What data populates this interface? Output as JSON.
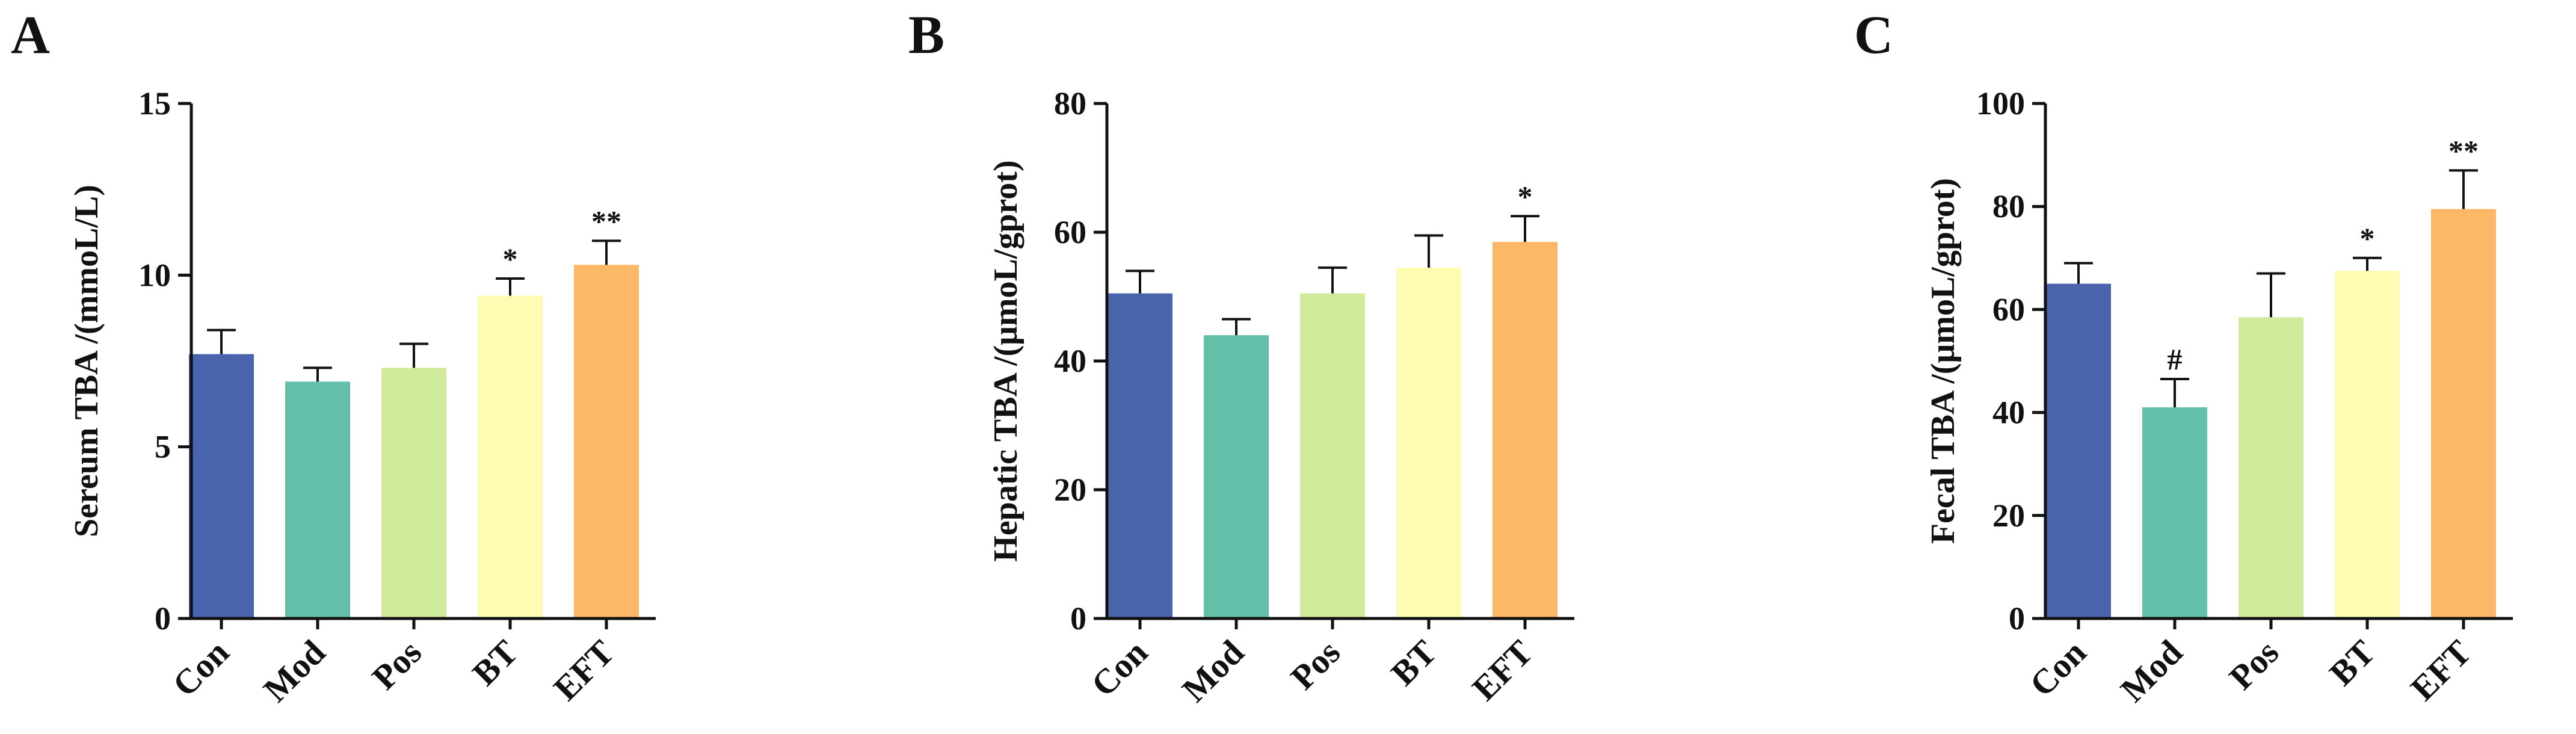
{
  "colors": {
    "Con": "#4a63ad",
    "Mod": "#63bfa8",
    "Pos": "#d1eb9c",
    "BT": "#fefbb3",
    "EFT": "#fdb867",
    "axis": "#111111"
  },
  "chart_data": [
    {
      "type": "bar",
      "panel": "A",
      "title": "",
      "xlabel": "",
      "ylabel": "Sereum TBA /(mmoL/L)",
      "ylim": [
        0,
        15
      ],
      "yticks": [
        0,
        5,
        10,
        15
      ],
      "categories": [
        "Con",
        "Mod",
        "Pos",
        "BT",
        "EFT"
      ],
      "values": [
        7.7,
        6.9,
        7.3,
        9.4,
        10.3
      ],
      "errors": [
        0.7,
        0.4,
        0.7,
        0.5,
        0.7
      ],
      "significance": [
        "",
        "",
        "",
        "*",
        "**"
      ]
    },
    {
      "type": "bar",
      "panel": "B",
      "title": "",
      "xlabel": "",
      "ylabel": "Hepatic TBA /(μmoL/gprot)",
      "ylim": [
        0,
        80
      ],
      "yticks": [
        0,
        20,
        40,
        60,
        80
      ],
      "categories": [
        "Con",
        "Mod",
        "Pos",
        "BT",
        "EFT"
      ],
      "values": [
        50.5,
        44.0,
        50.5,
        54.5,
        58.5
      ],
      "errors": [
        3.5,
        2.5,
        4.0,
        5.0,
        4.0
      ],
      "significance": [
        "",
        "",
        "",
        "",
        "*"
      ]
    },
    {
      "type": "bar",
      "panel": "C",
      "title": "",
      "xlabel": "",
      "ylabel": "Fecal TBA /(μmoL/gprot)",
      "ylim": [
        0,
        100
      ],
      "yticks": [
        0,
        20,
        40,
        60,
        80,
        100
      ],
      "categories": [
        "Con",
        "Mod",
        "Pos",
        "BT",
        "EFT"
      ],
      "values": [
        65.0,
        41.0,
        58.5,
        67.5,
        79.5
      ],
      "errors": [
        4.0,
        5.5,
        8.5,
        2.5,
        7.5
      ],
      "significance": [
        "",
        "#",
        "",
        "*",
        "**"
      ]
    }
  ]
}
